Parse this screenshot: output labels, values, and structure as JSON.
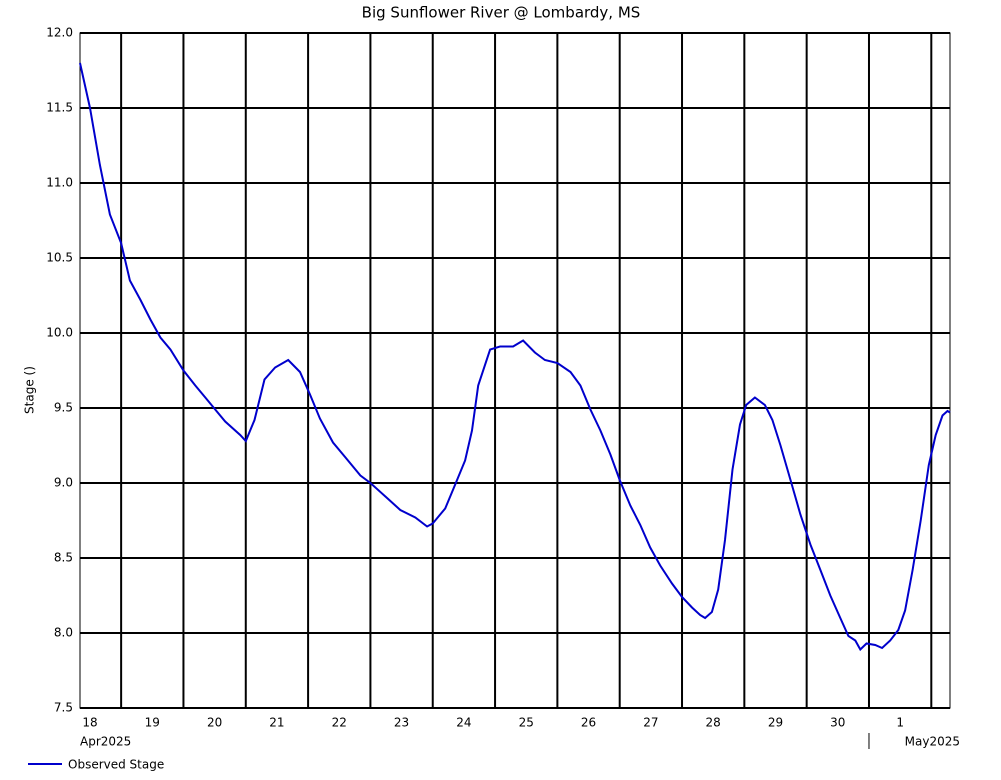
{
  "chart_data": {
    "type": "line",
    "title": "Big Sunflower River @ Lombardy, MS",
    "ylabel": "Stage ()",
    "ylim": [
      7.5,
      12.0
    ],
    "yticks": [
      {
        "value": 7.5,
        "label": "7.5"
      },
      {
        "value": 8,
        "label": "8.0"
      },
      8.5,
      {
        "value": 9,
        "label": "9.0"
      },
      9.5,
      {
        "value": 10,
        "label": "10.0"
      },
      10.5,
      {
        "value": 11,
        "label": "11.0"
      },
      11.5,
      {
        "value": 12,
        "label": "12.0"
      }
    ],
    "xlim": [
      0.34,
      14.3
    ],
    "xticks": [
      1,
      2,
      3,
      4,
      5,
      6,
      7,
      8,
      9,
      10,
      11,
      12,
      13,
      14
    ],
    "day_labels": [
      {
        "value": 0.5,
        "label": "18"
      },
      {
        "value": 1.5,
        "label": "19"
      },
      {
        "value": 2.5,
        "label": "20"
      },
      {
        "value": 3.5,
        "label": "21"
      },
      {
        "value": 4.5,
        "label": "22"
      },
      {
        "value": 5.5,
        "label": "23"
      },
      {
        "value": 6.5,
        "label": "24"
      },
      {
        "value": 7.5,
        "label": "25"
      },
      {
        "value": 8.5,
        "label": "26"
      },
      {
        "value": 9.5,
        "label": "27"
      },
      {
        "value": 10.5,
        "label": "28"
      },
      {
        "value": 11.5,
        "label": "29"
      },
      {
        "value": 12.5,
        "label": "30"
      },
      {
        "value": 13.5,
        "label": "1"
      }
    ],
    "month_labels": [
      {
        "value": 0.34,
        "label": "Apr2025"
      },
      {
        "value": 13,
        "label": "May2025"
      }
    ],
    "grid": true,
    "series": [
      {
        "name": "Observed Stage",
        "color": "#0000cc",
        "x": [
          0.34,
          0.5,
          0.66,
          0.82,
          1.0,
          1.14,
          1.31,
          1.47,
          1.63,
          1.79,
          2.0,
          2.19,
          2.35,
          2.51,
          2.67,
          2.91,
          3.0,
          3.14,
          3.3,
          3.47,
          3.68,
          3.87,
          4.03,
          4.19,
          4.4,
          4.6,
          4.84,
          5.0,
          5.24,
          5.48,
          5.72,
          5.91,
          6.0,
          6.2,
          6.36,
          6.52,
          6.63,
          6.73,
          6.92,
          7.08,
          7.29,
          7.45,
          7.64,
          7.8,
          8.0,
          8.21,
          8.37,
          8.53,
          8.69,
          8.85,
          9.0,
          9.17,
          9.33,
          9.49,
          9.65,
          9.84,
          10.0,
          10.16,
          10.29,
          10.37,
          10.48,
          10.58,
          10.69,
          10.81,
          10.93,
          11.03,
          11.17,
          11.33,
          11.45,
          11.58,
          11.74,
          11.9,
          12.06,
          12.22,
          12.38,
          12.54,
          12.67,
          12.78,
          12.86,
          12.96,
          13.1,
          13.21,
          13.34,
          13.47,
          13.58,
          13.7,
          13.83,
          13.96,
          14.07,
          14.18,
          14.26,
          14.3
        ],
        "values": [
          11.8,
          11.5,
          11.12,
          10.79,
          10.6,
          10.35,
          10.22,
          10.09,
          9.97,
          9.89,
          9.75,
          9.65,
          9.57,
          9.49,
          9.41,
          9.32,
          9.28,
          9.42,
          9.69,
          9.77,
          9.82,
          9.74,
          9.59,
          9.43,
          9.27,
          9.17,
          9.05,
          9.0,
          8.91,
          8.82,
          8.77,
          8.71,
          8.73,
          8.83,
          8.99,
          9.15,
          9.35,
          9.65,
          9.89,
          9.91,
          9.91,
          9.95,
          9.87,
          9.82,
          9.8,
          9.74,
          9.65,
          9.49,
          9.35,
          9.19,
          9.02,
          8.85,
          8.72,
          8.57,
          8.45,
          8.33,
          8.24,
          8.17,
          8.12,
          8.1,
          8.14,
          8.29,
          8.62,
          9.09,
          9.39,
          9.52,
          9.57,
          9.52,
          9.42,
          9.25,
          9.02,
          8.79,
          8.59,
          8.42,
          8.25,
          8.1,
          7.98,
          7.95,
          7.89,
          7.93,
          7.92,
          7.9,
          7.95,
          8.02,
          8.15,
          8.42,
          8.75,
          9.12,
          9.32,
          9.45,
          9.48,
          9.47
        ]
      }
    ]
  }
}
